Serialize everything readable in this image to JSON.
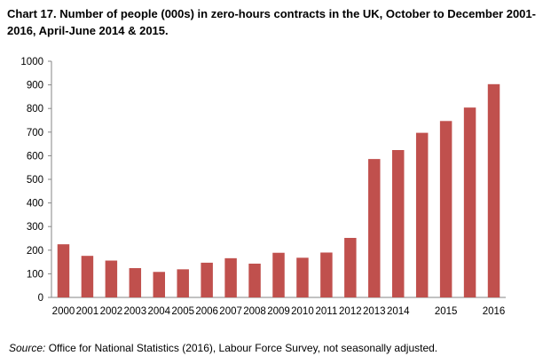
{
  "title": "Chart 17. Number of people (000s) in zero-hours contracts in the UK, October to December 2001-2016, April-June 2014 & 2015.",
  "source": {
    "label": "Source:",
    "text": " Office for National Statistics (2016), Labour Force Survey, not seasonally adjusted."
  },
  "chart_data": {
    "type": "bar",
    "title": "Chart 17. Number of people (000s) in zero-hours contracts in the UK, October to December 2001-2016, April-June 2014 & 2015.",
    "xlabel": "",
    "ylabel": "",
    "ylim": [
      0,
      1000
    ],
    "yticks": [
      0,
      100,
      200,
      300,
      400,
      500,
      600,
      700,
      800,
      900,
      1000
    ],
    "grid": false,
    "bar_color": "#c0504d",
    "bars": [
      {
        "label": "2000",
        "value": 225
      },
      {
        "label": "2001",
        "value": 176
      },
      {
        "label": "2002",
        "value": 156
      },
      {
        "label": "2003",
        "value": 124
      },
      {
        "label": "2004",
        "value": 108
      },
      {
        "label": "2005",
        "value": 119
      },
      {
        "label": "2006",
        "value": 147
      },
      {
        "label": "2007",
        "value": 166
      },
      {
        "label": "2008",
        "value": 143
      },
      {
        "label": "2009",
        "value": 189
      },
      {
        "label": "2010",
        "value": 168
      },
      {
        "label": "2011",
        "value": 190
      },
      {
        "label": "2012",
        "value": 252
      },
      {
        "label": "2013",
        "value": 586
      },
      {
        "label": "2014",
        "value": 624
      },
      {
        "label": "",
        "value": 697
      },
      {
        "label": "2015",
        "value": 747
      },
      {
        "label": "",
        "value": 804
      },
      {
        "label": "2016",
        "value": 903
      }
    ]
  }
}
